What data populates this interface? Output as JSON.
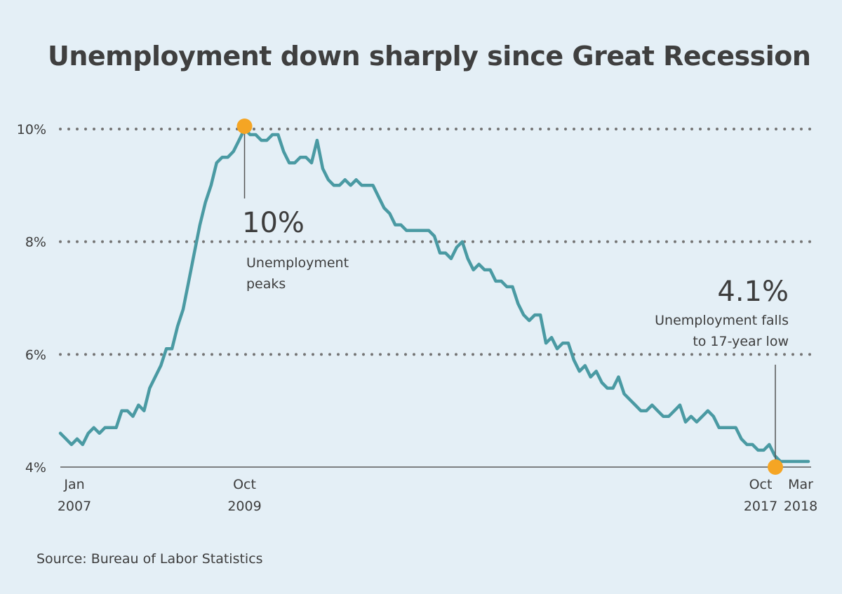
{
  "title": "Unemployment down sharply since Great Recession",
  "source": "Source: Bureau of Labor Statistics",
  "colors": {
    "background": "#e4eff6",
    "line": "#4a9aa3",
    "marker": "#f5a524",
    "grid": "#747474",
    "text": "#3d3d3d"
  },
  "chart_data": {
    "type": "line",
    "title": "Unemployment down sharply since Great Recession",
    "xlabel": "",
    "ylabel": "",
    "ylim": [
      4,
      10
    ],
    "y_ticks": [
      "10%",
      "8%",
      "6%",
      "4%"
    ],
    "y_tick_values": [
      10,
      8,
      6,
      4
    ],
    "x_tick_labels": [
      {
        "month": "Jan",
        "year": "2007",
        "date": "2007-01"
      },
      {
        "month": "Oct",
        "year": "2009",
        "date": "2009-10"
      },
      {
        "month": "Oct",
        "year": "2017",
        "date": "2017-10"
      },
      {
        "month": "Mar",
        "year": "2018",
        "date": "2018-03"
      }
    ],
    "grid": "horizontal dotted",
    "series": [
      {
        "name": "",
        "x": [
          "2007-01",
          "2007-02",
          "2007-03",
          "2007-04",
          "2007-05",
          "2007-06",
          "2007-07",
          "2007-08",
          "2007-09",
          "2007-10",
          "2007-11",
          "2007-12",
          "2008-01",
          "2008-02",
          "2008-03",
          "2008-04",
          "2008-05",
          "2008-06",
          "2008-07",
          "2008-08",
          "2008-09",
          "2008-10",
          "2008-11",
          "2008-12",
          "2009-01",
          "2009-02",
          "2009-03",
          "2009-04",
          "2009-05",
          "2009-06",
          "2009-07",
          "2009-08",
          "2009-09",
          "2009-10",
          "2009-11",
          "2009-12",
          "2010-01",
          "2010-02",
          "2010-03",
          "2010-04",
          "2010-05",
          "2010-06",
          "2010-07",
          "2010-08",
          "2010-09",
          "2010-10",
          "2010-11",
          "2010-12",
          "2011-01",
          "2011-02",
          "2011-03",
          "2011-04",
          "2011-05",
          "2011-06",
          "2011-07",
          "2011-08",
          "2011-09",
          "2011-10",
          "2011-11",
          "2011-12",
          "2012-01",
          "2012-02",
          "2012-03",
          "2012-04",
          "2012-05",
          "2012-06",
          "2012-07",
          "2012-08",
          "2012-09",
          "2012-10",
          "2012-11",
          "2012-12",
          "2013-01",
          "2013-02",
          "2013-03",
          "2013-04",
          "2013-05",
          "2013-06",
          "2013-07",
          "2013-08",
          "2013-09",
          "2013-10",
          "2013-11",
          "2013-12",
          "2014-01",
          "2014-02",
          "2014-03",
          "2014-04",
          "2014-05",
          "2014-06",
          "2014-07",
          "2014-08",
          "2014-09",
          "2014-10",
          "2014-11",
          "2014-12",
          "2015-01",
          "2015-02",
          "2015-03",
          "2015-04",
          "2015-05",
          "2015-06",
          "2015-07",
          "2015-08",
          "2015-09",
          "2015-10",
          "2015-11",
          "2015-12",
          "2016-01",
          "2016-02",
          "2016-03",
          "2016-04",
          "2016-05",
          "2016-06",
          "2016-07",
          "2016-08",
          "2016-09",
          "2016-10",
          "2016-11",
          "2016-12",
          "2017-01",
          "2017-02",
          "2017-03",
          "2017-04",
          "2017-05",
          "2017-06",
          "2017-07",
          "2017-08",
          "2017-09",
          "2017-10",
          "2017-11",
          "2017-12",
          "2018-01",
          "2018-02",
          "2018-03"
        ],
        "values": [
          4.6,
          4.5,
          4.4,
          4.5,
          4.4,
          4.6,
          4.7,
          4.6,
          4.7,
          4.7,
          4.7,
          5.0,
          5.0,
          4.9,
          5.1,
          5.0,
          5.4,
          5.6,
          5.8,
          6.1,
          6.1,
          6.5,
          6.8,
          7.3,
          7.8,
          8.3,
          8.7,
          9.0,
          9.4,
          9.5,
          9.5,
          9.6,
          9.8,
          10.0,
          9.9,
          9.9,
          9.8,
          9.8,
          9.9,
          9.9,
          9.6,
          9.4,
          9.4,
          9.5,
          9.5,
          9.4,
          9.8,
          9.3,
          9.1,
          9.0,
          9.0,
          9.1,
          9.0,
          9.1,
          9.0,
          9.0,
          9.0,
          8.8,
          8.6,
          8.5,
          8.3,
          8.3,
          8.2,
          8.2,
          8.2,
          8.2,
          8.2,
          8.1,
          7.8,
          7.8,
          7.7,
          7.9,
          8.0,
          7.7,
          7.5,
          7.6,
          7.5,
          7.5,
          7.3,
          7.3,
          7.2,
          7.2,
          6.9,
          6.7,
          6.6,
          6.7,
          6.7,
          6.2,
          6.3,
          6.1,
          6.2,
          6.2,
          5.9,
          5.7,
          5.8,
          5.6,
          5.7,
          5.5,
          5.4,
          5.4,
          5.6,
          5.3,
          5.2,
          5.1,
          5.0,
          5.0,
          5.1,
          5.0,
          4.9,
          4.9,
          5.0,
          5.1,
          4.8,
          4.9,
          4.8,
          4.9,
          5.0,
          4.9,
          4.7,
          4.7,
          4.7,
          4.7,
          4.5,
          4.4,
          4.4,
          4.3,
          4.3,
          4.4,
          4.2,
          4.1,
          4.1,
          4.1,
          4.1,
          4.1,
          4.1
        ]
      }
    ],
    "annotations": [
      {
        "date": "2009-10",
        "value": 10.0,
        "big": "10%",
        "lines": [
          "Unemployment",
          "peaks"
        ]
      },
      {
        "date": "2017-10",
        "value": 4.1,
        "big": "4.1%",
        "lines": [
          "Unemployment falls",
          "to 17-year low"
        ]
      }
    ]
  }
}
